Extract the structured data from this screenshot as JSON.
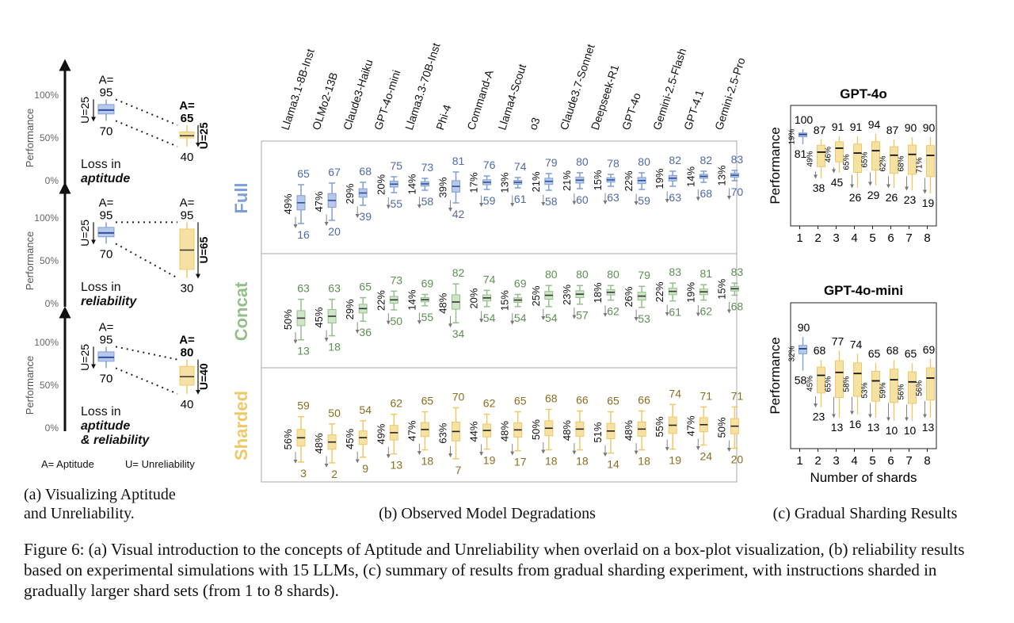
{
  "colors": {
    "blue": "#7f9fd4",
    "blue_fill": "#b7c8ea",
    "green": "#93c08a",
    "green_fill": "#cfe5c7",
    "yellow": "#efc869",
    "yellow_fill": "#f5e2a3",
    "blue_text": "#4e6aa8",
    "green_text": "#5c8f52",
    "yellow_text": "#8a6d1e"
  },
  "panel_a": {
    "caption": "(a) Visualizing Aptitude and Unreliability.",
    "legend": "A= Aptitude     U= Unreliability",
    "y_ticks": [
      "100%",
      "50%",
      "0%"
    ],
    "ylabel": "Performance",
    "rows": [
      {
        "loss_text": "Loss in",
        "loss_word": "aptitude",
        "loss_word2": "",
        "left_A": "95",
        "left_low": "70",
        "left_U": "U=25",
        "right_A": "65",
        "right_low": "40",
        "right_U": "U=25",
        "right_A_label": "A="
      },
      {
        "loss_text": "Loss in",
        "loss_word": "reliability",
        "loss_word2": "",
        "left_A": "95",
        "left_low": "70",
        "left_U": "U=25",
        "right_A": "95",
        "right_low": "30",
        "right_U": "U=65",
        "right_A_label": "A="
      },
      {
        "loss_text": "Loss in",
        "loss_word": "aptitude",
        "loss_word2": "& reliability",
        "left_A": "95",
        "left_low": "70",
        "left_U": "U=25",
        "right_A": "80",
        "right_low": "40",
        "right_U": "U=40",
        "right_A_label": "A="
      }
    ],
    "A_label": "A="
  },
  "chart_data": [
    {
      "type": "box",
      "title": "(b) Observed Model Degradations",
      "models": [
        "Llama3.1-8B-Inst",
        "OLMo2-13B",
        "Claude3-Haiku",
        "GPT-4o-mini",
        "Llama3.3-70B-Inst",
        "Phi-4",
        "Command-A",
        "Llama4-Scout",
        "o3",
        "Claude3.7-Sonnet",
        "Deepseek-R1",
        "GPT-4o",
        "Gemini-2.5-Flash",
        "GPT-4.1",
        "Gemini-2.5-Pro"
      ],
      "settings": [
        {
          "name": "Full",
          "top": [
            65,
            67,
            68,
            75,
            73,
            81,
            76,
            74,
            79,
            80,
            78,
            80,
            82,
            82,
            83
          ],
          "bottom": [
            16,
            20,
            39,
            55,
            58,
            42,
            59,
            61,
            58,
            60,
            63,
            59,
            63,
            68,
            70
          ],
          "pct": [
            "49%",
            "47%",
            "29%",
            "20%",
            "14%",
            "39%",
            "17%",
            "13%",
            "21%",
            "21%",
            "15%",
            "22%",
            "19%",
            "14%",
            "13%"
          ]
        },
        {
          "name": "Concat",
          "top": [
            63,
            63,
            65,
            73,
            69,
            82,
            74,
            69,
            80,
            80,
            80,
            79,
            83,
            81,
            83
          ],
          "bottom": [
            13,
            18,
            36,
            50,
            55,
            34,
            54,
            54,
            54,
            57,
            62,
            53,
            61,
            62,
            68
          ],
          "pct": [
            "50%",
            "45%",
            "29%",
            "22%",
            "14%",
            "48%",
            "20%",
            "15%",
            "25%",
            "23%",
            "18%",
            "26%",
            "22%",
            "19%",
            "15%"
          ]
        },
        {
          "name": "Sharded",
          "top": [
            59,
            50,
            54,
            62,
            65,
            70,
            62,
            65,
            68,
            66,
            65,
            66,
            74,
            71,
            71
          ],
          "bottom": [
            3,
            2,
            9,
            13,
            18,
            7,
            19,
            17,
            18,
            18,
            14,
            18,
            19,
            24,
            20
          ],
          "pct": [
            "56%",
            "48%",
            "45%",
            "49%",
            "47%",
            "63%",
            "44%",
            "48%",
            "50%",
            "48%",
            "51%",
            "48%",
            "55%",
            "47%",
            "50%"
          ]
        }
      ]
    },
    {
      "type": "box",
      "title": "GPT-4o",
      "xlabel": "",
      "ylabel": "Performance",
      "x": [
        "1",
        "2",
        "3",
        "4",
        "5",
        "6",
        "7",
        "8"
      ],
      "top": [
        100,
        87,
        91,
        91,
        94,
        87,
        90,
        90
      ],
      "bottom": [
        81,
        38,
        45,
        26,
        29,
        26,
        23,
        19
      ],
      "pct": [
        "19%",
        "49%",
        "46%",
        "65%",
        "65%",
        "62%",
        "68%",
        "71%"
      ]
    },
    {
      "type": "box",
      "title": "GPT-4o-mini",
      "xlabel": "Number of shards",
      "ylabel": "Performance",
      "x": [
        "1",
        "2",
        "3",
        "4",
        "5",
        "6",
        "7",
        "8"
      ],
      "top": [
        90,
        68,
        77,
        74,
        65,
        68,
        65,
        69
      ],
      "bottom": [
        58,
        23,
        13,
        16,
        13,
        10,
        10,
        13
      ],
      "pct": [
        "32%",
        "45%",
        "65%",
        "58%",
        "53%",
        "59%",
        "56%",
        "56%"
      ]
    }
  ],
  "panel_c_caption": "(c) Gradual Sharding Results",
  "figure_caption": "Figure 6: (a) Visual introduction to the concepts of Aptitude and Unreliability when overlaid on a box-plot visualization, (b) reliability results based on experimental simulations with 15 LLMs, (c) summary of results from gradual sharding experiment, with instructions sharded in gradually larger shard sets (from 1 to 8 shards)."
}
